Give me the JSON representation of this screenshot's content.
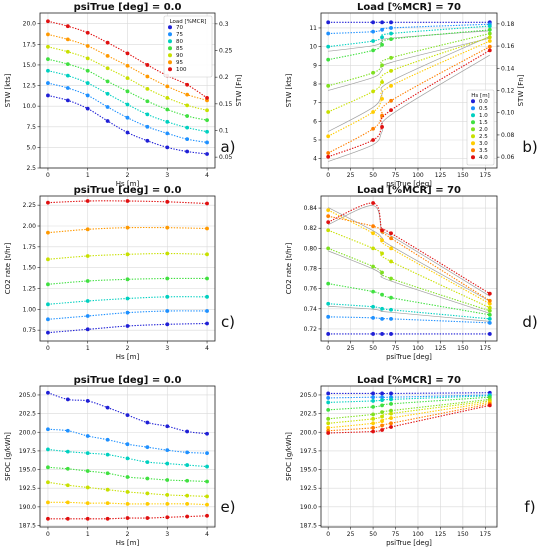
{
  "chart_data": [
    {
      "id": "a",
      "type": "line",
      "title": "psiTrue [deg] = 0.0",
      "xlabel": "Hs [m]",
      "ylabel": "STW [kts]",
      "y2label": "STW [Fn]",
      "xlim": [
        -0.2,
        4.2
      ],
      "ylim": [
        2.5,
        21.3
      ],
      "xticks": [
        "0",
        "1",
        "2",
        "3",
        "4"
      ],
      "yticks": [
        "2.5",
        "5.0",
        "7.5",
        "10.0",
        "12.5",
        "15.0",
        "17.5",
        "20.0"
      ],
      "y2ticks": [
        "0.05",
        "0.1",
        "0.15",
        "0.2",
        "0.25",
        "0.3"
      ],
      "grid": true,
      "legend_loc": "top-right",
      "legend": {
        "title": "Load [%MCR]",
        "entries": [
          "70",
          "75",
          "80",
          "85",
          "90",
          "95",
          "100"
        ]
      },
      "x": [
        0,
        0.5,
        1,
        1.5,
        2,
        2.5,
        3,
        3.5,
        4
      ],
      "series": [
        {
          "color": "#1f1fd6",
          "values": [
            11.3,
            10.7,
            9.7,
            8.2,
            6.8,
            5.8,
            5.0,
            4.5,
            4.2
          ]
        },
        {
          "color": "#1e90ff",
          "values": [
            12.8,
            12.2,
            11.3,
            9.9,
            8.6,
            7.5,
            6.7,
            6.0,
            5.6
          ]
        },
        {
          "color": "#00d0c0",
          "values": [
            14.3,
            13.7,
            12.8,
            11.5,
            10.2,
            9.0,
            8.1,
            7.4,
            6.9
          ]
        },
        {
          "color": "#40e040",
          "values": [
            15.7,
            15.1,
            14.3,
            13.0,
            11.8,
            10.6,
            9.6,
            8.8,
            8.3
          ]
        },
        {
          "color": "#c8e000",
          "values": [
            17.2,
            16.6,
            15.8,
            14.6,
            13.4,
            12.1,
            11.0,
            10.1,
            9.5
          ]
        },
        {
          "color": "#ff9900",
          "values": [
            18.7,
            18.1,
            17.3,
            16.1,
            14.9,
            13.6,
            12.4,
            11.4,
            10.7
          ]
        },
        {
          "color": "#e01010",
          "values": [
            20.3,
            19.7,
            18.9,
            17.7,
            16.4,
            15.0,
            13.7,
            12.6,
            11.0
          ]
        }
      ]
    },
    {
      "id": "b",
      "type": "line",
      "title": "Load [%MCR] = 70",
      "xlabel": "psiTrue [deg]",
      "ylabel": "STW [kts]",
      "y2label": "STW [Fn]",
      "xlim": [
        -8,
        188
      ],
      "ylim": [
        3.5,
        11.8
      ],
      "xticks": [
        "0",
        "25",
        "50",
        "75",
        "100",
        "125",
        "150",
        "175"
      ],
      "yticks": [
        "4",
        "5",
        "6",
        "7",
        "8",
        "9",
        "10",
        "11"
      ],
      "y2ticks": [
        "0.06",
        "0.08",
        "0.10",
        "0.12",
        "0.14",
        "0.16",
        "0.18"
      ],
      "grid": true,
      "legend_loc": "bottom-right",
      "legend": {
        "title": "Hs [m]",
        "entries": [
          "0.0",
          "0.5",
          "1.0",
          "1.5",
          "2.0",
          "2.5",
          "3.0",
          "3.5",
          "4.0"
        ]
      },
      "x": [
        0,
        50,
        60,
        70,
        180
      ],
      "series": [
        {
          "color": "#1f1fd6",
          "values": [
            11.3,
            11.3,
            11.3,
            11.3,
            11.3
          ]
        },
        {
          "color": "#1e90ff",
          "values": [
            10.7,
            10.8,
            10.9,
            11.0,
            11.2
          ]
        },
        {
          "color": "#00d0c0",
          "values": [
            10.0,
            10.3,
            10.5,
            10.7,
            11.1
          ]
        },
        {
          "color": "#40e040",
          "values": [
            9.3,
            9.8,
            10.1,
            10.4,
            10.9
          ]
        },
        {
          "color": "#7fe020",
          "values": [
            7.9,
            8.6,
            9.0,
            9.4,
            10.7
          ]
        },
        {
          "color": "#c8e000",
          "values": [
            6.5,
            7.6,
            8.1,
            8.7,
            10.5
          ]
        },
        {
          "color": "#ffcc00",
          "values": [
            5.2,
            6.5,
            7.2,
            7.9,
            10.3
          ]
        },
        {
          "color": "#ff7f00",
          "values": [
            4.3,
            5.6,
            6.3,
            7.1,
            10.0
          ]
        },
        {
          "color": "#e01010",
          "values": [
            4.1,
            5.0,
            5.7,
            6.6,
            9.8
          ]
        }
      ]
    },
    {
      "id": "c",
      "type": "line",
      "title": "psiTrue [deg] = 0.0",
      "xlabel": "Hs [m]",
      "ylabel": "CO2 rate [t/hr]",
      "xlim": [
        -0.2,
        4.2
      ],
      "ylim": [
        0.62,
        2.36
      ],
      "xticks": [
        "0",
        "1",
        "2",
        "3",
        "4"
      ],
      "yticks": [
        "0.75",
        "1.00",
        "1.25",
        "1.50",
        "1.75",
        "2.00",
        "2.25"
      ],
      "grid": true,
      "x": [
        0,
        1,
        2,
        3,
        4
      ],
      "series": [
        {
          "color": "#1f1fd6",
          "values": [
            0.72,
            0.76,
            0.8,
            0.82,
            0.83
          ]
        },
        {
          "color": "#1e90ff",
          "values": [
            0.88,
            0.92,
            0.96,
            0.98,
            0.98
          ]
        },
        {
          "color": "#00d0c0",
          "values": [
            1.06,
            1.1,
            1.13,
            1.15,
            1.15
          ]
        },
        {
          "color": "#40e040",
          "values": [
            1.3,
            1.34,
            1.36,
            1.37,
            1.37
          ]
        },
        {
          "color": "#c8e000",
          "values": [
            1.6,
            1.64,
            1.66,
            1.67,
            1.66
          ]
        },
        {
          "color": "#ff9900",
          "values": [
            1.92,
            1.96,
            1.98,
            1.98,
            1.97
          ]
        },
        {
          "color": "#e01010",
          "values": [
            2.28,
            2.3,
            2.3,
            2.29,
            2.27
          ]
        }
      ]
    },
    {
      "id": "d",
      "type": "line",
      "title": "Load [%MCR] = 70",
      "xlabel": "psiTrue [deg]",
      "ylabel": "CO2 rate [t/hr]",
      "xlim": [
        -8,
        188
      ],
      "ylim": [
        0.708,
        0.852
      ],
      "xticks": [
        "0",
        "25",
        "50",
        "75",
        "100",
        "125",
        "150",
        "175"
      ],
      "yticks": [
        "0.72",
        "0.74",
        "0.76",
        "0.78",
        "0.80",
        "0.82",
        "0.84"
      ],
      "grid": true,
      "x": [
        0,
        50,
        60,
        70,
        180
      ],
      "series": [
        {
          "color": "#1f1fd6",
          "values": [
            0.715,
            0.715,
            0.715,
            0.715,
            0.715
          ]
        },
        {
          "color": "#1e90ff",
          "values": [
            0.732,
            0.731,
            0.73,
            0.73,
            0.726
          ]
        },
        {
          "color": "#00d0c0",
          "values": [
            0.745,
            0.742,
            0.74,
            0.739,
            0.73
          ]
        },
        {
          "color": "#40e040",
          "values": [
            0.765,
            0.757,
            0.754,
            0.751,
            0.734
          ]
        },
        {
          "color": "#7fe020",
          "values": [
            0.8,
            0.782,
            0.776,
            0.77,
            0.738
          ]
        },
        {
          "color": "#c8e000",
          "values": [
            0.818,
            0.8,
            0.795,
            0.787,
            0.741
          ]
        },
        {
          "color": "#ffcc00",
          "values": [
            0.838,
            0.815,
            0.808,
            0.8,
            0.745
          ]
        },
        {
          "color": "#ff7f00",
          "values": [
            0.832,
            0.822,
            0.817,
            0.81,
            0.748
          ]
        },
        {
          "color": "#e01010",
          "values": [
            0.826,
            0.845,
            0.818,
            0.815,
            0.755
          ]
        }
      ]
    },
    {
      "id": "e",
      "type": "line",
      "title": "psiTrue [deg] = 0.0",
      "xlabel": "Hs [m]",
      "ylabel": "SFOC [g/kWh]",
      "xlim": [
        -0.2,
        4.2
      ],
      "ylim": [
        187.3,
        206.2
      ],
      "xticks": [
        "0",
        "1",
        "2",
        "3",
        "4"
      ],
      "yticks": [
        "187.5",
        "190.0",
        "192.5",
        "195.0",
        "197.5",
        "200.0",
        "202.5",
        "205.0"
      ],
      "grid": true,
      "x": [
        0,
        0.5,
        1,
        1.5,
        2,
        2.5,
        3,
        3.5,
        4
      ],
      "series": [
        {
          "color": "#1f1fd6",
          "values": [
            205.3,
            204.4,
            204.2,
            203.3,
            202.3,
            201.3,
            200.8,
            200.1,
            199.8
          ]
        },
        {
          "color": "#1e90ff",
          "values": [
            200.4,
            200.2,
            199.5,
            199.0,
            198.4,
            198.0,
            197.6,
            197.3,
            197.2
          ]
        },
        {
          "color": "#00d0c0",
          "values": [
            197.7,
            197.4,
            197.2,
            197.0,
            196.5,
            196.0,
            195.8,
            195.6,
            195.4
          ]
        },
        {
          "color": "#40e040",
          "values": [
            195.3,
            195.1,
            194.8,
            194.5,
            194.0,
            193.8,
            193.6,
            193.5,
            193.4
          ]
        },
        {
          "color": "#c8e000",
          "values": [
            193.3,
            192.9,
            192.6,
            192.3,
            192.0,
            191.8,
            191.6,
            191.5,
            191.4
          ]
        },
        {
          "color": "#ffcc00",
          "values": [
            190.6,
            190.6,
            190.5,
            190.5,
            190.4,
            190.4,
            190.4,
            190.4,
            190.3
          ]
        },
        {
          "color": "#e01010",
          "values": [
            188.4,
            188.4,
            188.4,
            188.4,
            188.5,
            188.5,
            188.6,
            188.7,
            188.8
          ]
        }
      ]
    },
    {
      "id": "f",
      "type": "line",
      "title": "Load [%MCR] = 70",
      "xlabel": "psiTrue [deg]",
      "ylabel": "SFOC [g/kWh]",
      "xlim": [
        -8,
        188
      ],
      "ylim": [
        187.3,
        206.2
      ],
      "xticks": [
        "0",
        "25",
        "50",
        "75",
        "100",
        "125",
        "150",
        "175"
      ],
      "yticks": [
        "187.5",
        "190.0",
        "192.5",
        "195.0",
        "197.5",
        "200.0",
        "202.5",
        "205.0"
      ],
      "grid": true,
      "x": [
        0,
        50,
        60,
        70,
        180
      ],
      "series": [
        {
          "color": "#1f1fd6",
          "values": [
            205.2,
            205.2,
            205.2,
            205.2,
            205.3
          ]
        },
        {
          "color": "#1e90ff",
          "values": [
            204.6,
            204.7,
            204.7,
            204.7,
            205.0
          ]
        },
        {
          "color": "#00d0c0",
          "values": [
            204.0,
            204.2,
            204.3,
            204.4,
            204.9
          ]
        },
        {
          "color": "#40e040",
          "values": [
            203.0,
            203.4,
            203.6,
            203.8,
            204.7
          ]
        },
        {
          "color": "#7fe020",
          "values": [
            201.8,
            202.4,
            202.7,
            202.9,
            204.4
          ]
        },
        {
          "color": "#c8e000",
          "values": [
            201.2,
            201.8,
            202.1,
            202.5,
            204.2
          ]
        },
        {
          "color": "#ffcc00",
          "values": [
            200.6,
            201.2,
            201.5,
            201.9,
            204.0
          ]
        },
        {
          "color": "#ff7f00",
          "values": [
            200.2,
            200.6,
            200.9,
            201.2,
            203.8
          ]
        },
        {
          "color": "#e01010",
          "values": [
            199.9,
            200.1,
            200.3,
            200.7,
            203.6
          ]
        }
      ]
    }
  ]
}
